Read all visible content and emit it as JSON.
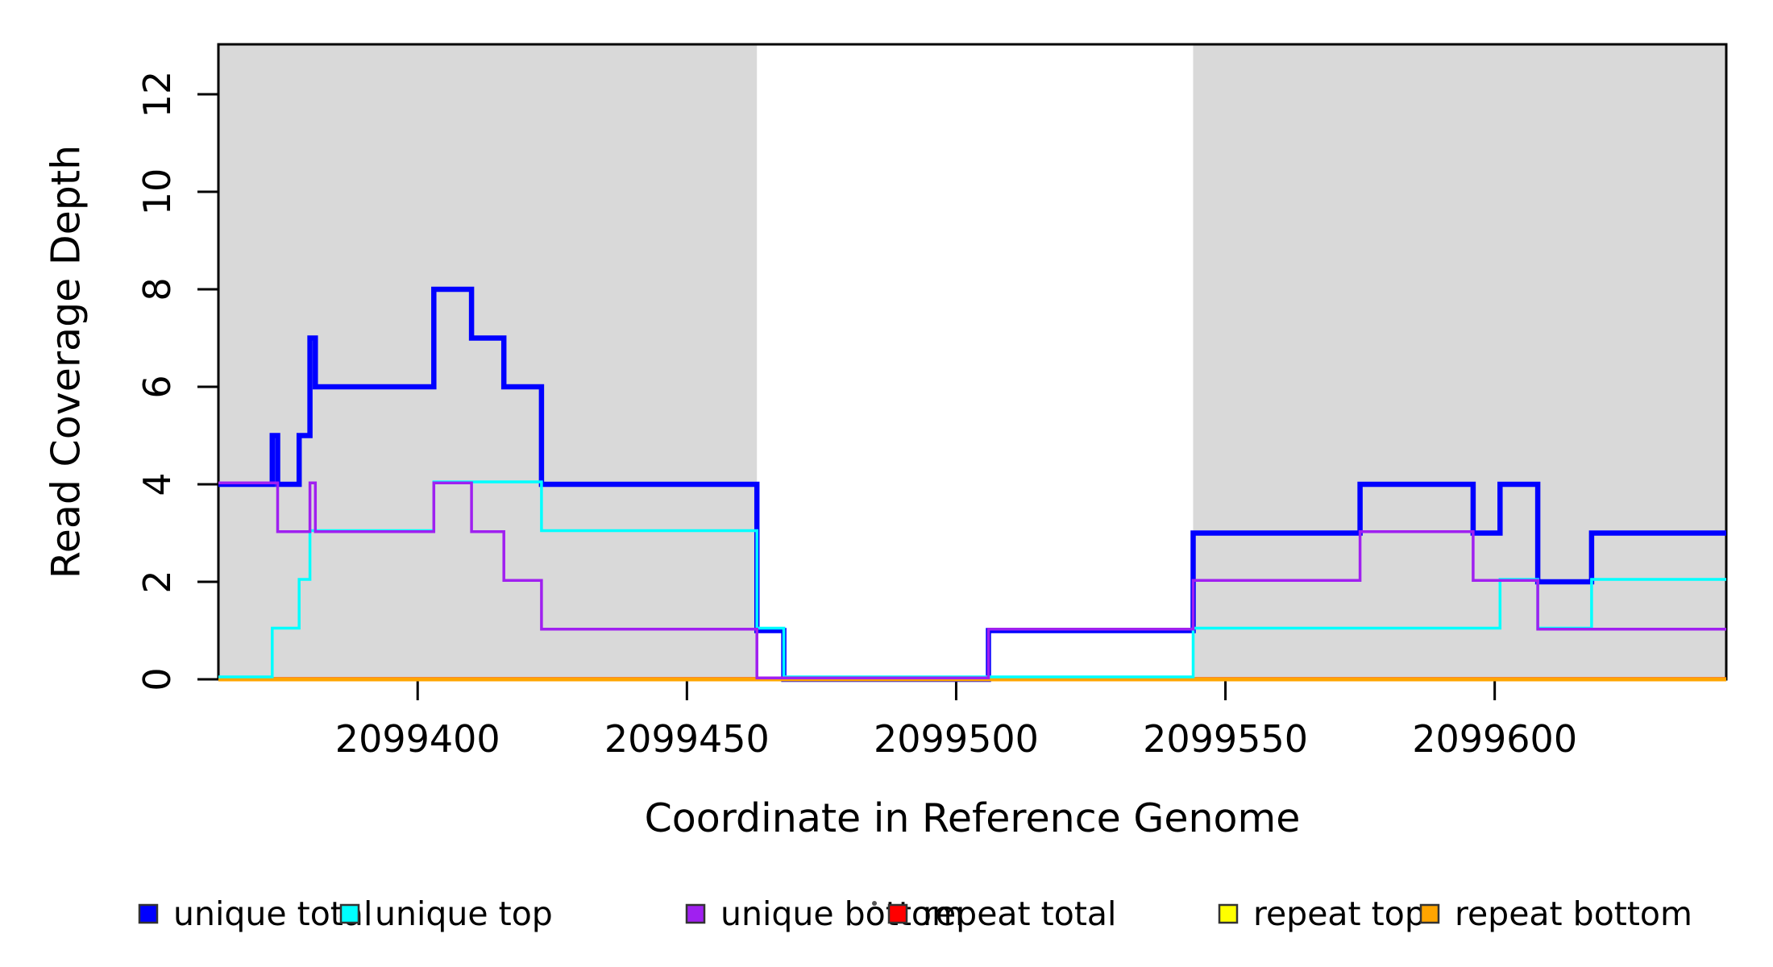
{
  "figure": {
    "kind": "read coverage depth step plot"
  },
  "chart_data": {
    "type": "line",
    "subtype": "step",
    "title": "",
    "xlabel": "Coordinate in Reference Genome",
    "ylabel": "Read Coverage Depth",
    "xlim": [
      2099363,
      2099643
    ],
    "ylim": [
      0,
      13
    ],
    "x_ticks": [
      "2099400",
      "2099450",
      "2099500",
      "2099550",
      "2099600"
    ],
    "x_tick_values": [
      2099400,
      2099450,
      2099500,
      2099550,
      2099600
    ],
    "y_ticks": [
      "0",
      "2",
      "4",
      "6",
      "8",
      "10",
      "12"
    ],
    "y_tick_values": [
      0,
      2,
      4,
      6,
      8,
      10,
      12
    ],
    "grid": false,
    "legend_position": "bottom",
    "shade_color": "#D9D9D9",
    "shaded_regions": [
      {
        "from": 2099363,
        "to": 2099463
      },
      {
        "from": 2099544,
        "to": 2099643
      }
    ],
    "series": [
      {
        "name": "unique total",
        "color": "#0000FF",
        "steps": [
          [
            2099363,
            4
          ],
          [
            2099373,
            5
          ],
          [
            2099374,
            4
          ],
          [
            2099378,
            5
          ],
          [
            2099380,
            7
          ],
          [
            2099381,
            6
          ],
          [
            2099403,
            8
          ],
          [
            2099410,
            7
          ],
          [
            2099416,
            6
          ],
          [
            2099423,
            4
          ],
          [
            2099463,
            1
          ],
          [
            2099468,
            0
          ],
          [
            2099506,
            1
          ],
          [
            2099544,
            3
          ],
          [
            2099575,
            4
          ],
          [
            2099596,
            3
          ],
          [
            2099601,
            4
          ],
          [
            2099608,
            2
          ],
          [
            2099618,
            3
          ]
        ]
      },
      {
        "name": "unique top",
        "color": "#00FFFF",
        "steps": [
          [
            2099363,
            0
          ],
          [
            2099373,
            1
          ],
          [
            2099378,
            2
          ],
          [
            2099380,
            3
          ],
          [
            2099403,
            4
          ],
          [
            2099423,
            3
          ],
          [
            2099463,
            1
          ],
          [
            2099468,
            0
          ],
          [
            2099544,
            1
          ],
          [
            2099601,
            2
          ],
          [
            2099608,
            1
          ],
          [
            2099618,
            2
          ]
        ]
      },
      {
        "name": "unique bottom",
        "color": "#A020F0",
        "steps": [
          [
            2099363,
            4
          ],
          [
            2099374,
            3
          ],
          [
            2099380,
            4
          ],
          [
            2099381,
            3
          ],
          [
            2099403,
            4
          ],
          [
            2099410,
            3
          ],
          [
            2099416,
            2
          ],
          [
            2099423,
            1
          ],
          [
            2099463,
            0
          ],
          [
            2099506,
            1
          ],
          [
            2099544,
            2
          ],
          [
            2099575,
            3
          ],
          [
            2099596,
            2
          ],
          [
            2099608,
            1
          ]
        ]
      },
      {
        "name": "repeat total",
        "color": "#FF0000",
        "steps": [
          [
            2099363,
            0
          ]
        ]
      },
      {
        "name": "repeat top",
        "color": "#FFFF00",
        "steps": [
          [
            2099363,
            0
          ]
        ]
      },
      {
        "name": "repeat bottom",
        "color": "#FFA500",
        "steps": [
          [
            2099363,
            0
          ]
        ]
      }
    ],
    "legend": [
      {
        "label": "unique total",
        "color": "#0000FF"
      },
      {
        "label": "unique top",
        "color": "#00FFFF"
      },
      {
        "label": "unique bottom",
        "color": "#A020F0"
      },
      {
        "label": "repeat total",
        "color": "#FF0000"
      },
      {
        "label": "repeat top",
        "color": "#FFFF00"
      },
      {
        "label": "repeat bottom",
        "color": "#FFA500"
      }
    ]
  }
}
